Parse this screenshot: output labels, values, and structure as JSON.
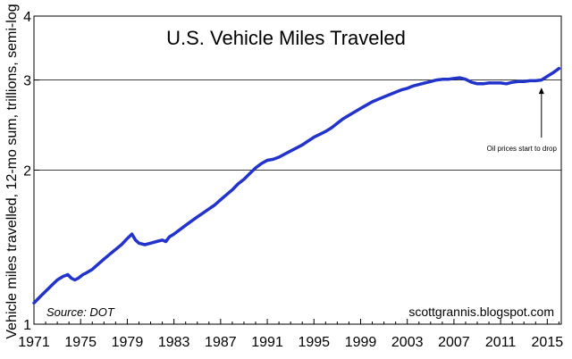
{
  "chart_data": {
    "type": "line",
    "title": "U.S. Vehicle Miles Traveled",
    "ylabel": "Vehicle miles travelled, 12-mo sum, trillions, semi-log",
    "xlabel": "",
    "yscale": "log",
    "ylim": [
      1,
      4
    ],
    "xlim": [
      1971,
      2016.2
    ],
    "y_ticks": [
      1,
      2,
      3,
      4
    ],
    "x_ticks": [
      1971,
      1975,
      1979,
      1983,
      1987,
      1991,
      1995,
      1999,
      2003,
      2007,
      2011,
      2015
    ],
    "source": "Source: DOT",
    "credit": "scottgrannis.blogspot.com",
    "annotation": {
      "text": "Oil prices start to drop",
      "x": 2014.5,
      "y": 2.97
    },
    "series": [
      {
        "name": "Vehicle miles traveled",
        "color": "#2233cc",
        "x": [
          1971.0,
          1971.5,
          1972.0,
          1972.5,
          1973.0,
          1973.5,
          1973.9,
          1974.2,
          1974.5,
          1974.8,
          1975.2,
          1975.5,
          1976.0,
          1976.5,
          1977.0,
          1977.5,
          1978.0,
          1978.5,
          1979.0,
          1979.4,
          1979.7,
          1980.0,
          1980.5,
          1981.0,
          1981.5,
          1982.0,
          1982.3,
          1982.6,
          1983.0,
          1983.5,
          1984.0,
          1984.5,
          1985.0,
          1985.5,
          1986.0,
          1986.5,
          1987.0,
          1987.5,
          1988.0,
          1988.5,
          1989.0,
          1989.5,
          1990.0,
          1990.5,
          1991.0,
          1991.5,
          1992.0,
          1992.5,
          1993.0,
          1993.5,
          1994.0,
          1994.5,
          1995.0,
          1995.5,
          1996.0,
          1996.5,
          1997.0,
          1997.5,
          1998.0,
          1998.5,
          1999.0,
          1999.5,
          2000.0,
          2000.5,
          2001.0,
          2001.5,
          2002.0,
          2002.5,
          2003.0,
          2003.5,
          2004.0,
          2004.5,
          2005.0,
          2005.5,
          2006.0,
          2006.5,
          2007.0,
          2007.5,
          2008.0,
          2008.5,
          2009.0,
          2009.5,
          2010.0,
          2010.5,
          2011.0,
          2011.5,
          2012.0,
          2012.5,
          2013.0,
          2013.5,
          2014.0,
          2014.5,
          2015.0,
          2015.5,
          2016.0
        ],
        "values": [
          1.1,
          1.13,
          1.16,
          1.19,
          1.22,
          1.24,
          1.25,
          1.23,
          1.22,
          1.23,
          1.25,
          1.26,
          1.28,
          1.31,
          1.34,
          1.37,
          1.4,
          1.43,
          1.47,
          1.5,
          1.46,
          1.44,
          1.43,
          1.44,
          1.45,
          1.46,
          1.45,
          1.48,
          1.5,
          1.53,
          1.56,
          1.59,
          1.62,
          1.65,
          1.68,
          1.71,
          1.75,
          1.79,
          1.83,
          1.88,
          1.92,
          1.97,
          2.02,
          2.06,
          2.09,
          2.1,
          2.12,
          2.15,
          2.18,
          2.21,
          2.24,
          2.28,
          2.32,
          2.35,
          2.38,
          2.42,
          2.47,
          2.52,
          2.56,
          2.6,
          2.64,
          2.68,
          2.72,
          2.75,
          2.78,
          2.81,
          2.84,
          2.87,
          2.89,
          2.92,
          2.94,
          2.96,
          2.98,
          3.0,
          3.01,
          3.01,
          3.02,
          3.03,
          3.01,
          2.97,
          2.95,
          2.95,
          2.96,
          2.96,
          2.96,
          2.95,
          2.97,
          2.98,
          2.98,
          2.99,
          2.99,
          3.0,
          3.05,
          3.1,
          3.16
        ]
      }
    ]
  }
}
